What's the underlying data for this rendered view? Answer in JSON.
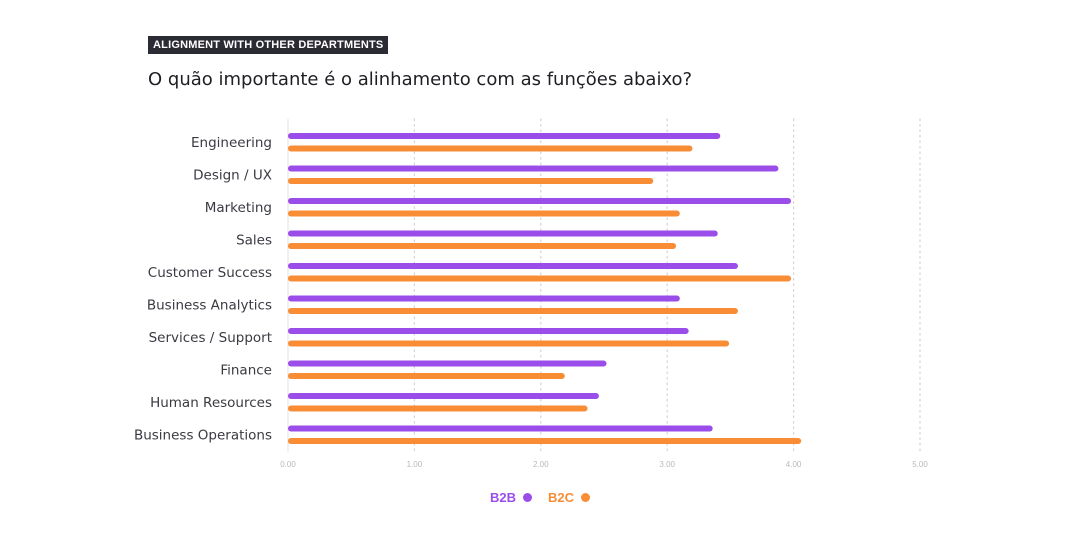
{
  "header": {
    "tag": "ALIGNMENT WITH OTHER DEPARTMENTS",
    "question": "O quão importante é o alinhamento com as funções abaixo?"
  },
  "chart_data": {
    "type": "bar",
    "orientation": "horizontal",
    "categories": [
      "Engineering",
      "Design / UX",
      "Marketing",
      "Sales",
      "Customer Success",
      "Business Analytics",
      "Services / Support",
      "Finance",
      "Human Resources",
      "Business Operations"
    ],
    "series": [
      {
        "name": "B2B",
        "color": "#9b4dea",
        "values": [
          3.42,
          3.88,
          3.98,
          3.4,
          3.56,
          3.1,
          3.17,
          2.52,
          2.46,
          3.36
        ]
      },
      {
        "name": "B2C",
        "color": "#f98d36",
        "values": [
          3.2,
          2.89,
          3.1,
          3.07,
          3.98,
          3.56,
          3.49,
          2.19,
          2.37,
          4.06
        ]
      }
    ],
    "xlim": [
      0,
      5
    ],
    "xticks": [
      "0.00",
      "1.00",
      "2.00",
      "3.00",
      "4.00",
      "5.00"
    ],
    "grid": true,
    "legend_position": "bottom-center"
  }
}
